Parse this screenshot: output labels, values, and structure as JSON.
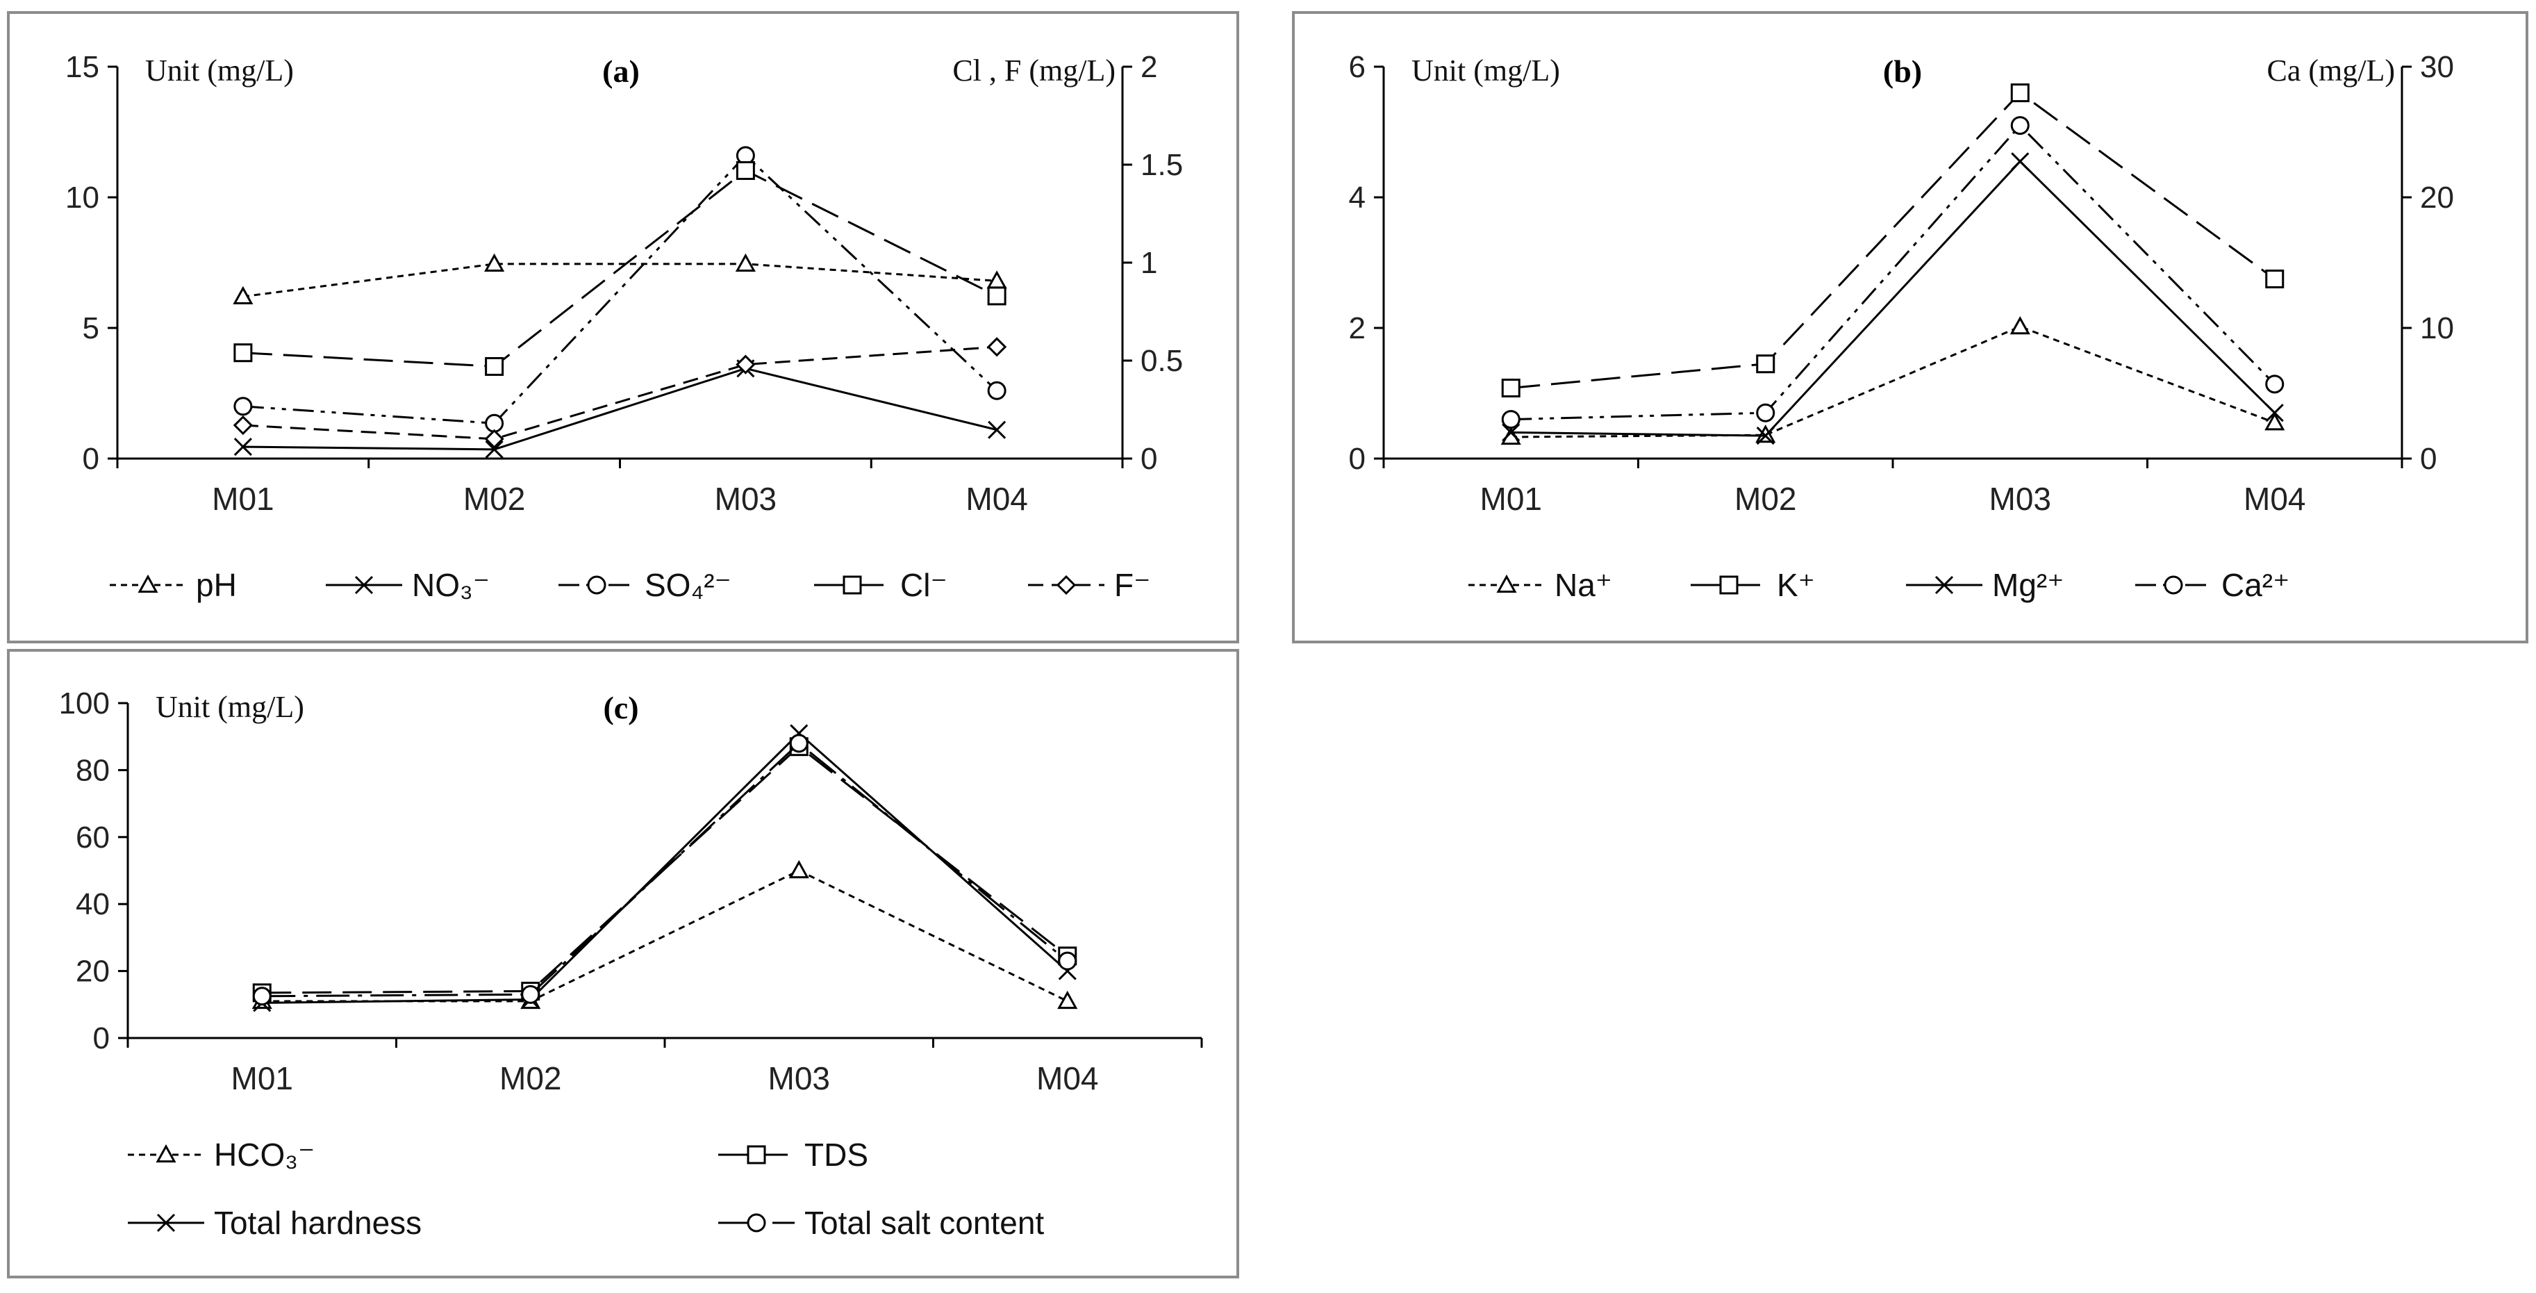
{
  "chart_data": [
    {
      "id": "a",
      "type": "line",
      "title": "(a)",
      "categories": [
        "M01",
        "M02",
        "M03",
        "M04"
      ],
      "ylabel_left": "Unit (mg/L)",
      "ylabel_right": "Cl , F (mg/L)",
      "ylim_left": [
        0,
        15
      ],
      "yticks_left": [
        0,
        5,
        10,
        15
      ],
      "ylim_right": [
        0,
        2
      ],
      "yticks_right": [
        0,
        0.5,
        1,
        1.5,
        2
      ],
      "series": [
        {
          "name": "pH",
          "axis": "left",
          "values": [
            6.2,
            7.45,
            7.45,
            6.8
          ],
          "dash": "short",
          "marker": "triangle"
        },
        {
          "name": "NO₃⁻",
          "axis": "left",
          "values": [
            0.45,
            0.35,
            3.45,
            1.1
          ],
          "dash": "solid",
          "marker": "x"
        },
        {
          "name": "SO₄²⁻",
          "axis": "left",
          "values": [
            2.0,
            1.35,
            11.6,
            2.6
          ],
          "dash": "dashdotdot",
          "marker": "circle"
        },
        {
          "name": "Cl⁻",
          "axis": "right",
          "values": [
            0.54,
            0.47,
            1.47,
            0.83
          ],
          "dash": "long",
          "marker": "square"
        },
        {
          "name": "F⁻",
          "axis": "right",
          "values": [
            0.17,
            0.1,
            0.48,
            0.57
          ],
          "dash": "medium",
          "marker": "diamond"
        }
      ],
      "legend_position": "bottom"
    },
    {
      "id": "b",
      "type": "line",
      "title": "(b)",
      "categories": [
        "M01",
        "M02",
        "M03",
        "M04"
      ],
      "ylabel_left": "Unit (mg/L)",
      "ylabel_right": "Ca (mg/L)",
      "ylim_left": [
        0,
        6
      ],
      "yticks_left": [
        0,
        2,
        4,
        6
      ],
      "ylim_right": [
        0,
        30
      ],
      "yticks_right": [
        0,
        10,
        20,
        30
      ],
      "series": [
        {
          "name": "Na⁺",
          "axis": "left",
          "values": [
            0.33,
            0.36,
            2.02,
            0.55
          ],
          "dash": "short",
          "marker": "triangle"
        },
        {
          "name": "K⁺",
          "axis": "left",
          "values": [
            1.08,
            1.45,
            5.6,
            2.75
          ],
          "dash": "long",
          "marker": "square"
        },
        {
          "name": "Mg²⁺",
          "axis": "left",
          "values": [
            0.4,
            0.35,
            4.55,
            0.7
          ],
          "dash": "solid",
          "marker": "x"
        },
        {
          "name": "Ca²⁺",
          "axis": "right",
          "values": [
            3.0,
            3.5,
            25.5,
            5.7
          ],
          "dash": "dashdotdot",
          "marker": "circle"
        }
      ],
      "legend_position": "bottom"
    },
    {
      "id": "c",
      "type": "line",
      "title": "(c)",
      "categories": [
        "M01",
        "M02",
        "M03",
        "M04"
      ],
      "ylabel_left": "Unit (mg/L)",
      "ylim_left": [
        0,
        100
      ],
      "yticks_left": [
        0,
        20,
        40,
        60,
        80,
        100
      ],
      "series": [
        {
          "name": "HCO₃⁻",
          "axis": "left",
          "values": [
            11,
            11,
            50,
            11
          ],
          "dash": "short",
          "marker": "triangle"
        },
        {
          "name": "TDS",
          "axis": "left",
          "values": [
            13.5,
            14,
            87,
            24.5
          ],
          "dash": "long",
          "marker": "square"
        },
        {
          "name": "Total hardness",
          "axis": "left",
          "values": [
            10.5,
            11.5,
            91,
            20
          ],
          "dash": "solid",
          "marker": "x"
        },
        {
          "name": "Total salt content",
          "axis": "left",
          "values": [
            12.5,
            13,
            88,
            23
          ],
          "dash": "longdot",
          "marker": "circle"
        }
      ],
      "legend_position": "bottom"
    }
  ]
}
